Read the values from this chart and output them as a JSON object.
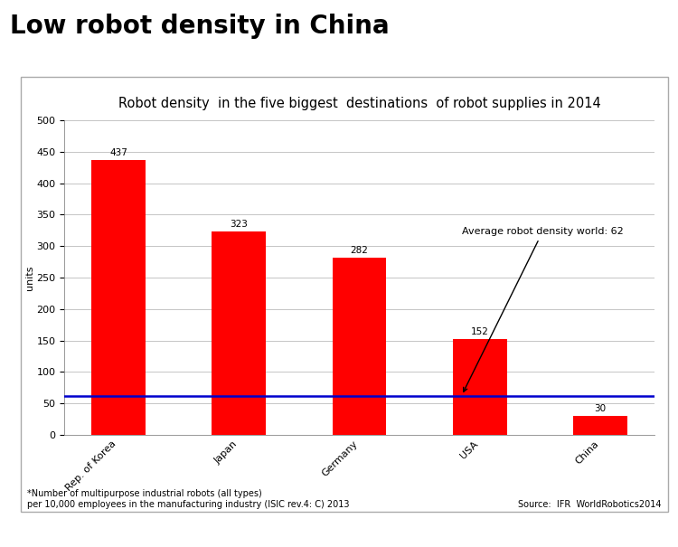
{
  "title_main": "Low robot density in China",
  "chart_title": "Robot density  in the five biggest  destinations  of robot supplies in 2014",
  "categories": [
    "Rep. of Korea",
    "Japan",
    "Germany",
    "USA",
    "China"
  ],
  "values": [
    437,
    323,
    282,
    152,
    30
  ],
  "bar_color": "#FF0000",
  "average_line_value": 62,
  "average_line_color": "#0000CD",
  "average_label": "Average robot density world: 62",
  "ylabel": "units",
  "ylim": [
    0,
    500
  ],
  "yticks": [
    0,
    50,
    100,
    150,
    200,
    250,
    300,
    350,
    400,
    450,
    500
  ],
  "footnote_left": "*Number of multipurpose industrial robots (all types)\nper 10,000 employees in the manufacturing industry (ISIC rev.4: C) 2013",
  "footnote_right": "Source:  IFR  WorldRobotics2014",
  "background_color": "#FFFFFF",
  "chart_border_color": "#AAAAAA",
  "title_fontsize": 20,
  "chart_title_fontsize": 10.5,
  "bar_label_fontsize": 7.5,
  "axis_label_fontsize": 8,
  "tick_fontsize": 8,
  "footnote_fontsize": 7,
  "annot_fontsize": 8,
  "bar_width": 0.45
}
